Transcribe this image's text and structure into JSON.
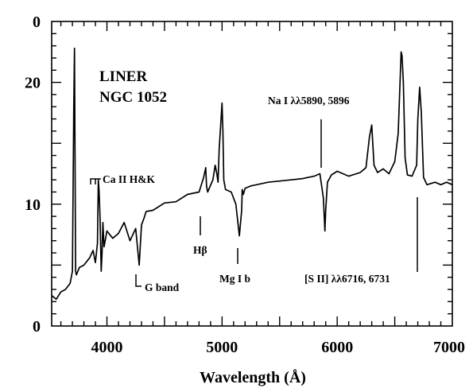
{
  "chart_data": {
    "type": "line",
    "title_lines": [
      "LINER",
      "NGC 1052"
    ],
    "xlabel": "Wavelength (Å)",
    "ylabel": "",
    "xlim": [
      3520,
      7000
    ],
    "ylim": [
      0,
      25
    ],
    "grid": false,
    "x_ticks": [
      {
        "value": 4000,
        "label": "4000"
      },
      {
        "value": 5000,
        "label": "5000"
      },
      {
        "value": 6000,
        "label": "6000"
      },
      {
        "value": 7000,
        "label": "7000"
      }
    ],
    "y_ticks": [
      {
        "value": 0,
        "label": "0"
      },
      {
        "value": 10,
        "label": "10"
      },
      {
        "value": 20,
        "label": "20"
      }
    ],
    "top_label": {
      "value": 25,
      "label": "0"
    },
    "series": [
      {
        "x": [
          3520,
          3560,
          3600,
          3640,
          3680,
          3700,
          3712,
          3718,
          3722,
          3728,
          3735,
          3760,
          3800,
          3850,
          3880,
          3900,
          3918,
          3925,
          3932,
          3940,
          3950,
          3958,
          3965,
          3975,
          4000,
          4050,
          4100,
          4150,
          4200,
          4250,
          4280,
          4300,
          4320,
          4340,
          4400,
          4500,
          4600,
          4700,
          4800,
          4840,
          4858,
          4865,
          4875,
          4920,
          4940,
          4955,
          4965,
          4975,
          4990,
          5000,
          5007,
          5015,
          5030,
          5080,
          5120,
          5150,
          5170,
          5175,
          5185,
          5200,
          5250,
          5300,
          5400,
          5500,
          5600,
          5700,
          5800,
          5850,
          5880,
          5893,
          5900,
          5915,
          5950,
          6000,
          6100,
          6200,
          6250,
          6280,
          6300,
          6320,
          6350,
          6400,
          6450,
          6500,
          6530,
          6555,
          6563,
          6575,
          6590,
          6610,
          6650,
          6690,
          6700,
          6716,
          6731,
          6750,
          6780,
          6850,
          6900,
          6950,
          7000
        ],
        "y": [
          2.5,
          2.2,
          2.8,
          3.0,
          3.5,
          4.5,
          18.0,
          22.8,
          15.0,
          4.5,
          4.2,
          4.8,
          5.0,
          5.6,
          6.2,
          5.2,
          6.8,
          12.0,
          11.0,
          9.0,
          4.5,
          6.0,
          8.5,
          6.5,
          7.8,
          7.2,
          7.6,
          8.5,
          7.0,
          8.0,
          5.0,
          8.3,
          8.8,
          9.4,
          9.5,
          10.1,
          10.2,
          10.8,
          11.0,
          12.2,
          13.0,
          11.5,
          11.0,
          12.0,
          13.2,
          12.5,
          11.8,
          14.5,
          16.8,
          18.3,
          16.0,
          12.0,
          11.2,
          11.0,
          10.0,
          7.4,
          9.5,
          11.2,
          10.8,
          11.3,
          11.5,
          11.6,
          11.8,
          11.9,
          12.0,
          12.1,
          12.3,
          12.5,
          10.5,
          7.8,
          9.5,
          11.8,
          12.4,
          12.7,
          12.3,
          12.6,
          13.0,
          15.5,
          16.5,
          13.2,
          12.6,
          12.9,
          12.5,
          13.5,
          15.8,
          22.5,
          22.2,
          20.0,
          13.8,
          12.4,
          12.3,
          13.2,
          17.0,
          19.6,
          17.5,
          12.2,
          11.6,
          11.8,
          11.6,
          11.8,
          11.6
        ]
      }
    ],
    "annotations": [
      {
        "text": "Ca II H&K",
        "x": 3950
      },
      {
        "text": "G band",
        "x": 4300
      },
      {
        "text": "Hβ",
        "x": 4861
      },
      {
        "text": "Mg I b",
        "x": 5175
      },
      {
        "text": "Na I λλ5890, 5896",
        "x": 5893
      },
      {
        "text": "[S II] λλ6716, 6731",
        "x": 6720
      }
    ]
  }
}
